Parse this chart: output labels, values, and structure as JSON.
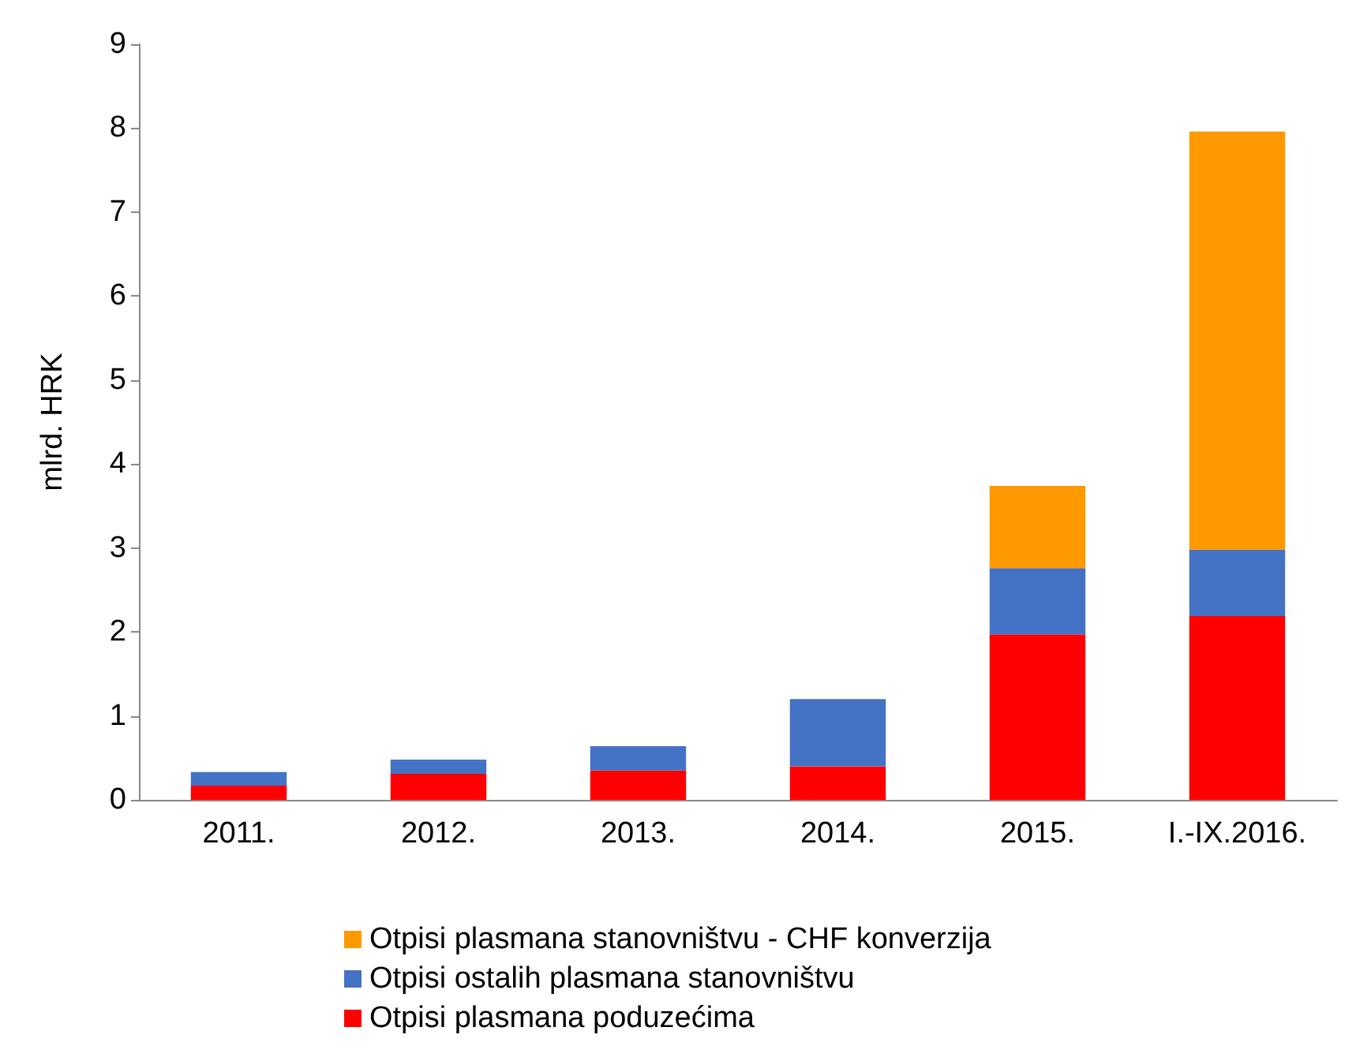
{
  "chart_data": {
    "type": "bar",
    "stacked": true,
    "ylabel": "mlrd. HRK",
    "categories": [
      "2011.",
      "2012.",
      "2013.",
      "2014.",
      "2015.",
      "I.-IX.2016."
    ],
    "series": [
      {
        "name": "Otpisi plasmana poduzećima",
        "color": "#ff0000",
        "values": [
          0.17,
          0.31,
          0.35,
          0.4,
          1.97,
          2.19
        ]
      },
      {
        "name": "Otpisi ostalih plasmana stanovništvu",
        "color": "#4472c4",
        "values": [
          0.16,
          0.17,
          0.29,
          0.8,
          0.79,
          0.79
        ]
      },
      {
        "name": "Otpisi plasmana stanovništvu - CHF konverzija",
        "color": "#ff9900",
        "values": [
          0,
          0,
          0,
          0,
          0.98,
          4.98
        ]
      }
    ],
    "ylim": [
      0,
      9
    ],
    "yticks": [
      0,
      1,
      2,
      3,
      4,
      5,
      6,
      7,
      8,
      9
    ],
    "grid": false,
    "legend": "bottom"
  }
}
